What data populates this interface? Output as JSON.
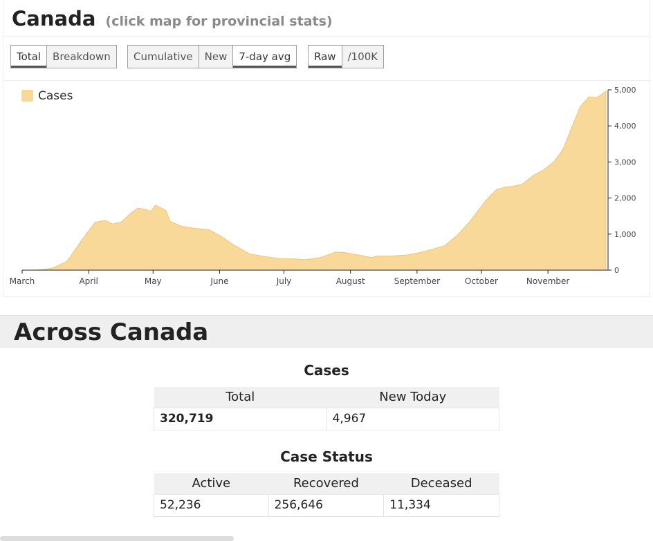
{
  "header": {
    "title": "Canada",
    "subtitle": "(click map for provincial stats)"
  },
  "controls": {
    "mode": [
      {
        "label": "Total",
        "active": true
      },
      {
        "label": "Breakdown",
        "active": false
      }
    ],
    "metric": [
      {
        "label": "Cumulative",
        "active": false
      },
      {
        "label": "New",
        "active": false
      },
      {
        "label": "7-day avg",
        "active": true
      }
    ],
    "scale": [
      {
        "label": "Raw",
        "active": true
      },
      {
        "label": "/100K",
        "active": false
      }
    ]
  },
  "chart_data": {
    "type": "area",
    "title": "",
    "xlabel": "",
    "ylabel": "",
    "legend": {
      "position": "top-left",
      "entries": [
        {
          "name": "Cases",
          "color": "#f8d99a"
        }
      ]
    },
    "ylim": [
      0,
      5000
    ],
    "yticks": [
      0,
      1000,
      2000,
      3000,
      4000,
      5000
    ],
    "ytick_labels": [
      "0",
      "1,000",
      "2,000",
      "3,000",
      "4,000",
      "5,000"
    ],
    "xlim": [
      "2020-03-01",
      "2020-11-29"
    ],
    "xticks": [
      {
        "date": "2020-03-01",
        "label": "March"
      },
      {
        "date": "2020-04-01",
        "label": "April"
      },
      {
        "date": "2020-05-01",
        "label": "May"
      },
      {
        "date": "2020-06-01",
        "label": "June"
      },
      {
        "date": "2020-07-01",
        "label": "July"
      },
      {
        "date": "2020-08-01",
        "label": "August"
      },
      {
        "date": "2020-09-01",
        "label": "September"
      },
      {
        "date": "2020-10-01",
        "label": "October"
      },
      {
        "date": "2020-11-01",
        "label": "November"
      }
    ],
    "grid": false,
    "series": [
      {
        "name": "Cases",
        "color": "#f8d99a",
        "points": [
          [
            "2020-03-01",
            0
          ],
          [
            "2020-03-08",
            5
          ],
          [
            "2020-03-15",
            50
          ],
          [
            "2020-03-22",
            250
          ],
          [
            "2020-03-29",
            850
          ],
          [
            "2020-04-04",
            1330
          ],
          [
            "2020-04-09",
            1380
          ],
          [
            "2020-04-12",
            1280
          ],
          [
            "2020-04-16",
            1330
          ],
          [
            "2020-04-21",
            1600
          ],
          [
            "2020-04-24",
            1720
          ],
          [
            "2020-04-28",
            1680
          ],
          [
            "2020-04-30",
            1630
          ],
          [
            "2020-05-02",
            1800
          ],
          [
            "2020-05-04",
            1750
          ],
          [
            "2020-05-07",
            1650
          ],
          [
            "2020-05-09",
            1350
          ],
          [
            "2020-05-14",
            1220
          ],
          [
            "2020-05-20",
            1160
          ],
          [
            "2020-05-27",
            1120
          ],
          [
            "2020-06-02",
            930
          ],
          [
            "2020-06-07",
            720
          ],
          [
            "2020-06-15",
            450
          ],
          [
            "2020-06-22",
            380
          ],
          [
            "2020-06-29",
            320
          ],
          [
            "2020-07-06",
            310
          ],
          [
            "2020-07-11",
            290
          ],
          [
            "2020-07-18",
            350
          ],
          [
            "2020-07-25",
            500
          ],
          [
            "2020-07-29",
            490
          ],
          [
            "2020-08-04",
            430
          ],
          [
            "2020-08-11",
            350
          ],
          [
            "2020-08-13",
            390
          ],
          [
            "2020-08-20",
            390
          ],
          [
            "2020-08-27",
            420
          ],
          [
            "2020-09-01",
            470
          ],
          [
            "2020-09-07",
            560
          ],
          [
            "2020-09-14",
            680
          ],
          [
            "2020-09-20",
            980
          ],
          [
            "2020-09-26",
            1380
          ],
          [
            "2020-10-03",
            1930
          ],
          [
            "2020-10-08",
            2230
          ],
          [
            "2020-10-12",
            2300
          ],
          [
            "2020-10-15",
            2320
          ],
          [
            "2020-10-20",
            2380
          ],
          [
            "2020-10-25",
            2620
          ],
          [
            "2020-10-30",
            2780
          ],
          [
            "2020-11-04",
            3020
          ],
          [
            "2020-11-08",
            3350
          ],
          [
            "2020-11-12",
            3950
          ],
          [
            "2020-11-16",
            4530
          ],
          [
            "2020-11-20",
            4800
          ],
          [
            "2020-11-24",
            4790
          ],
          [
            "2020-11-28",
            4967
          ]
        ]
      }
    ]
  },
  "summary": {
    "section_title": "Across Canada",
    "cases": {
      "title": "Cases",
      "headers": [
        "Total",
        "New Today"
      ],
      "values": [
        "320,719",
        "4,967"
      ]
    },
    "status": {
      "title": "Case Status",
      "headers": [
        "Active",
        "Recovered",
        "Deceased"
      ],
      "values": [
        "52,236",
        "256,646",
        "11,334"
      ]
    }
  }
}
